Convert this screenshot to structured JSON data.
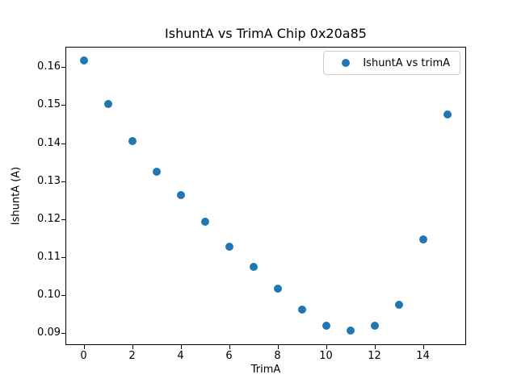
{
  "chart_data": {
    "type": "scatter",
    "title": "IshuntA vs TrimA Chip 0x20a85",
    "xlabel": "TrimA",
    "ylabel": "IshuntA (A)",
    "legend_entries": [
      "IshuntA vs trimA"
    ],
    "legend_position": "upper right",
    "x": [
      0,
      1,
      2,
      3,
      4,
      5,
      6,
      7,
      8,
      9,
      10,
      11,
      12,
      13,
      14,
      15
    ],
    "y": [
      0.1618,
      0.1504,
      0.1406,
      0.1324,
      0.1264,
      0.1192,
      0.1127,
      0.1075,
      0.1016,
      0.0962,
      0.092,
      0.0906,
      0.0918,
      0.0975,
      0.1147,
      0.1475
    ],
    "xlim": [
      -0.75,
      15.78
    ],
    "ylim": [
      0.0868,
      0.1654
    ],
    "xticks": [
      0,
      2,
      4,
      6,
      8,
      10,
      12,
      14
    ],
    "yticks": [
      0.09,
      0.1,
      0.11,
      0.12,
      0.13,
      0.14,
      0.15,
      0.16
    ],
    "ytick_decimals": 2,
    "grid": false,
    "marker_color": "#1f77b4",
    "text_color": "#000000",
    "spine_color": "#000000",
    "background_color": "#ffffff"
  }
}
